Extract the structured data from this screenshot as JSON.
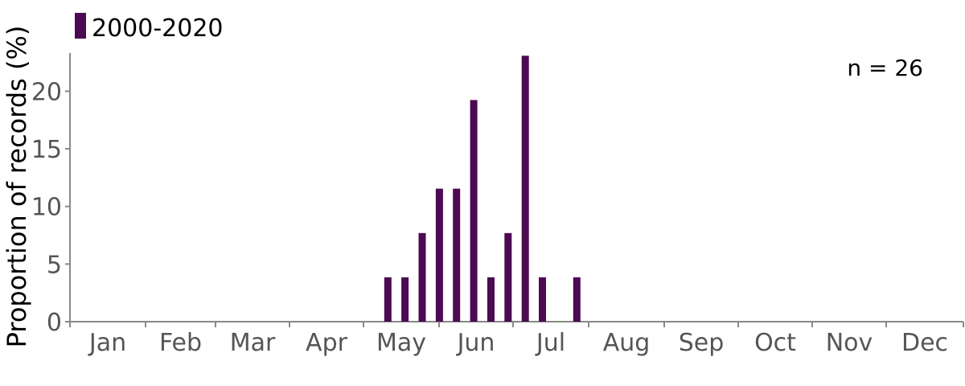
{
  "chart_data": {
    "type": "bar",
    "title": "",
    "xlabel": "",
    "ylabel": "Proportion of records (%)",
    "ylim": [
      0,
      23.08
    ],
    "yticks": [
      0,
      5,
      10,
      15,
      20
    ],
    "months": [
      "Jan",
      "Feb",
      "Mar",
      "Apr",
      "May",
      "Jun",
      "Jul",
      "Aug",
      "Sep",
      "Oct",
      "Nov",
      "Dec"
    ],
    "bar_period": "week",
    "series": [
      {
        "name": "2000-2020",
        "color": "#4b0a52",
        "weeks": [
          19,
          20,
          21,
          22,
          23,
          24,
          25,
          26,
          27,
          28,
          30
        ],
        "values": [
          3.85,
          3.85,
          7.69,
          11.54,
          11.54,
          19.23,
          3.85,
          7.69,
          23.08,
          3.85,
          3.85
        ]
      }
    ],
    "legend_position": "top-left",
    "grid": false,
    "annotation": "n = 26"
  }
}
